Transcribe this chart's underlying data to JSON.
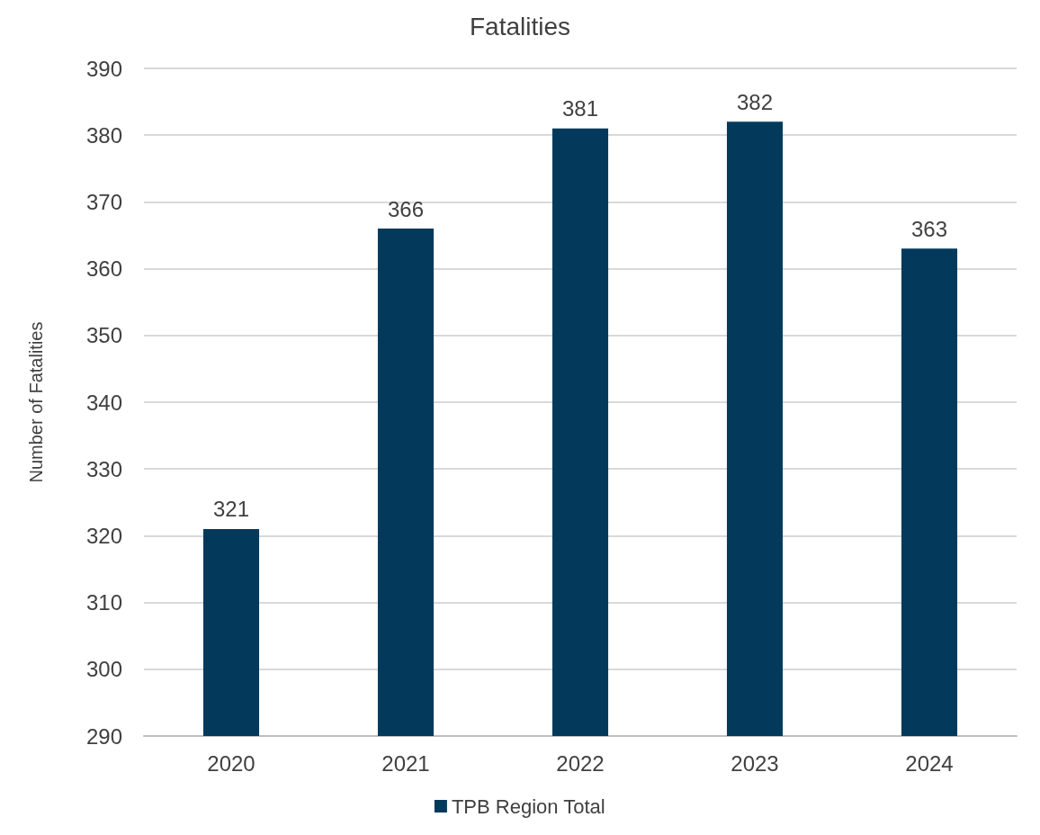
{
  "chart_data": {
    "type": "bar",
    "title": "Fatalities",
    "ylabel": "Number of Fatalities",
    "categories": [
      "2020",
      "2021",
      "2022",
      "2023",
      "2024"
    ],
    "series": [
      {
        "name": "TPB Region Total",
        "color": "#033a5c",
        "values": [
          321,
          366,
          381,
          382,
          363
        ]
      }
    ],
    "ylim": [
      290,
      390
    ],
    "yticks": [
      290,
      300,
      310,
      320,
      330,
      340,
      350,
      360,
      370,
      380,
      390
    ],
    "grid": "y",
    "legend": "bottom",
    "data_labels": true
  }
}
